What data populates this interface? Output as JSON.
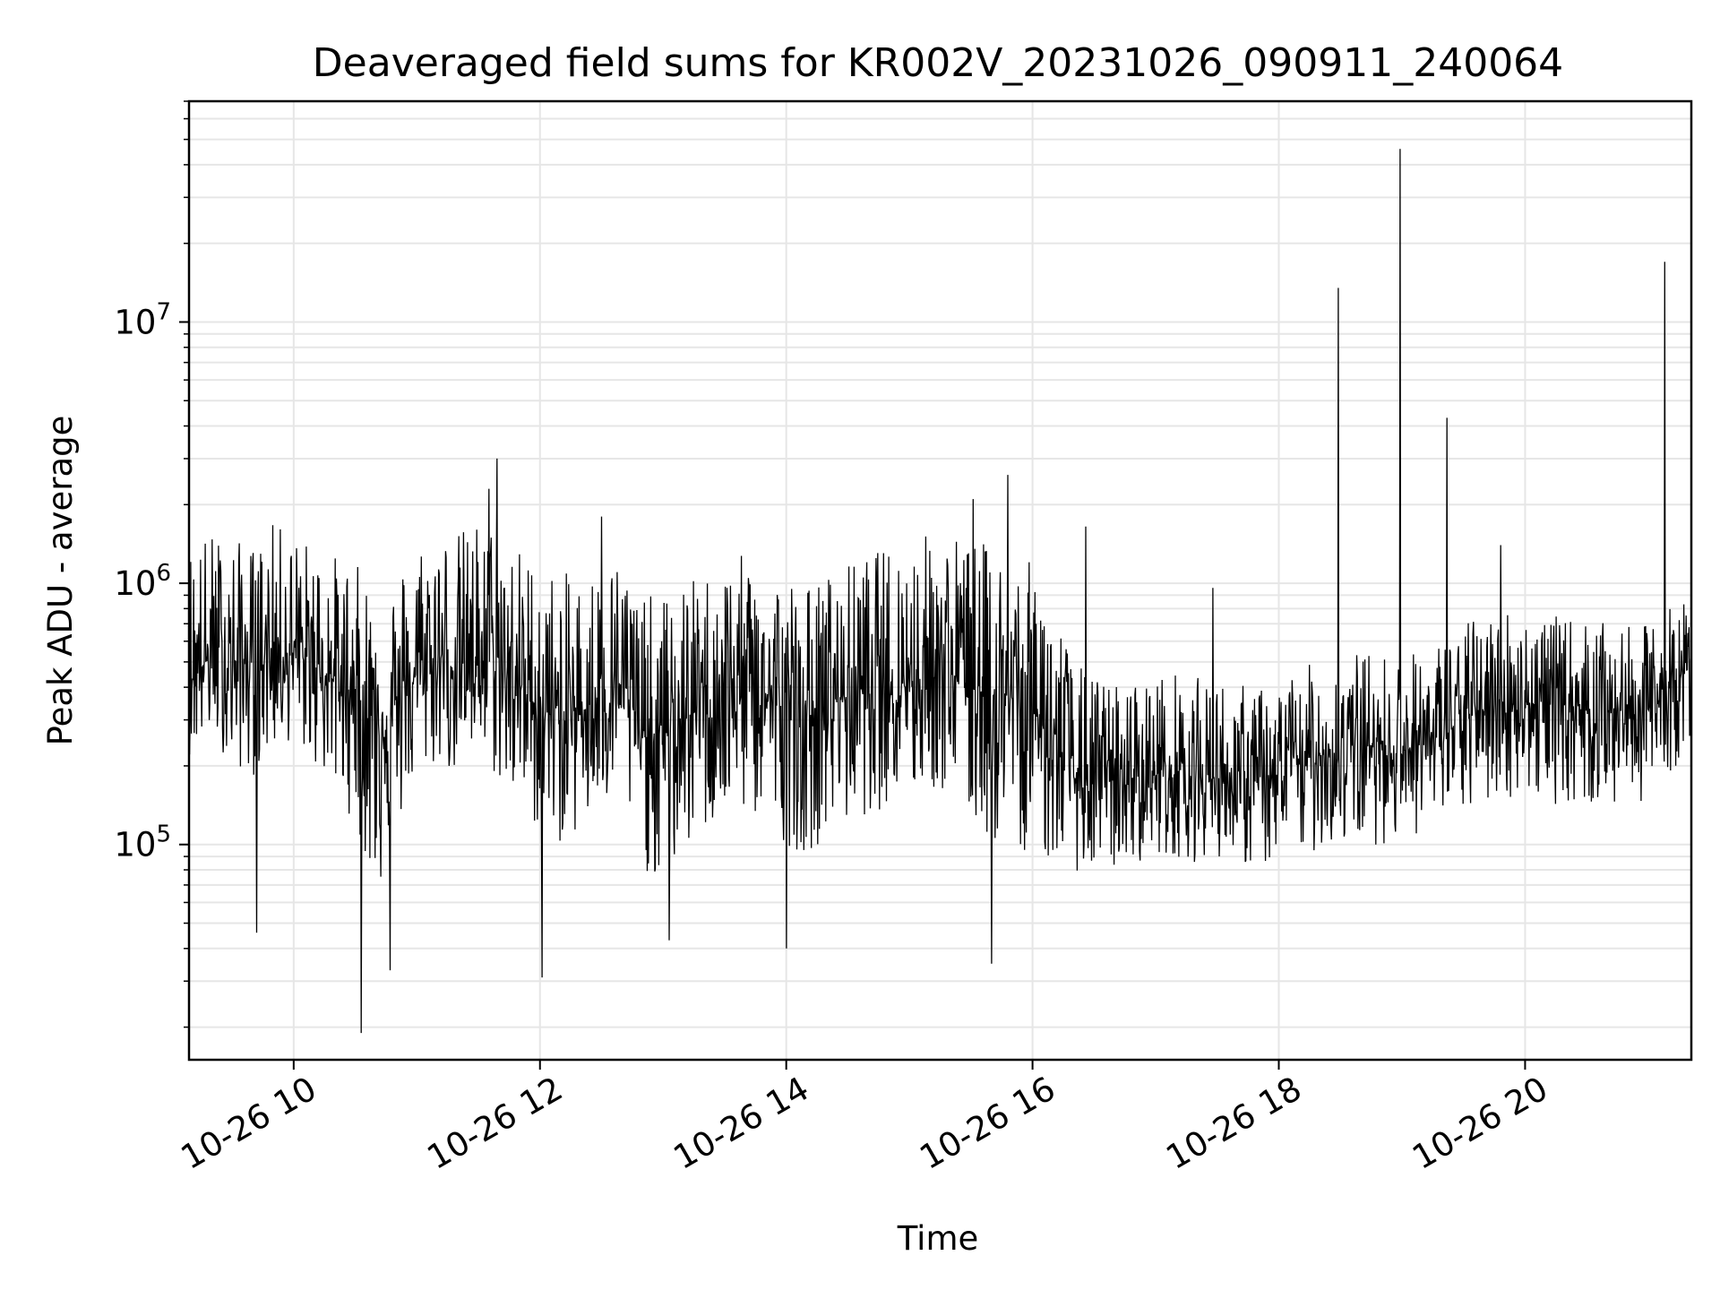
{
  "chart_data": {
    "type": "line",
    "title": "Deaveraged field sums for KR002V_20231026_090911_240064",
    "xlabel": "Time",
    "ylabel": "Peak ADU - average",
    "y_scale": "log",
    "ylim": [
      15000,
      70000000
    ],
    "xlim": [
      "2023-10-26 09:09",
      "2023-10-26 21:21"
    ],
    "x_ticks": [
      {
        "value": "2023-10-26 10:00",
        "label": "10-26 10"
      },
      {
        "value": "2023-10-26 12:00",
        "label": "10-26 12"
      },
      {
        "value": "2023-10-26 14:00",
        "label": "10-26 14"
      },
      {
        "value": "2023-10-26 16:00",
        "label": "10-26 16"
      },
      {
        "value": "2023-10-26 18:00",
        "label": "10-26 18"
      },
      {
        "value": "2023-10-26 20:00",
        "label": "10-26 20"
      }
    ],
    "y_ticks": [
      {
        "value": 100000,
        "base": "10",
        "exp": "5"
      },
      {
        "value": 1000000,
        "base": "10",
        "exp": "6"
      },
      {
        "value": 10000000,
        "base": "10",
        "exp": "7"
      }
    ],
    "grid": true,
    "line_color": "#000000",
    "series": [
      {
        "x": [
          "2023-10-26 09:10",
          "2023-10-26 09:20",
          "2023-10-26 09:30",
          "2023-10-26 09:40",
          "2023-10-26 09:50",
          "2023-10-26 10:00",
          "2023-10-26 10:10",
          "2023-10-26 10:20",
          "2023-10-26 10:30",
          "2023-10-26 10:40",
          "2023-10-26 10:50",
          "2023-10-26 11:00",
          "2023-10-26 11:10",
          "2023-10-26 11:20",
          "2023-10-26 11:30",
          "2023-10-26 11:40",
          "2023-10-26 11:50",
          "2023-10-26 12:00",
          "2023-10-26 12:10",
          "2023-10-26 12:20",
          "2023-10-26 12:30",
          "2023-10-26 12:40",
          "2023-10-26 12:50",
          "2023-10-26 13:00",
          "2023-10-26 13:10",
          "2023-10-26 13:20",
          "2023-10-26 13:30",
          "2023-10-26 13:40",
          "2023-10-26 13:50",
          "2023-10-26 14:00",
          "2023-10-26 14:10",
          "2023-10-26 14:20",
          "2023-10-26 14:30",
          "2023-10-26 14:40",
          "2023-10-26 14:50",
          "2023-10-26 15:00",
          "2023-10-26 15:10",
          "2023-10-26 15:20",
          "2023-10-26 15:30",
          "2023-10-26 15:40",
          "2023-10-26 15:50",
          "2023-10-26 16:00",
          "2023-10-26 16:10",
          "2023-10-26 16:20",
          "2023-10-26 16:30",
          "2023-10-26 16:40",
          "2023-10-26 16:50",
          "2023-10-26 17:00",
          "2023-10-26 17:10",
          "2023-10-26 17:20",
          "2023-10-26 17:30",
          "2023-10-26 17:40",
          "2023-10-26 17:50",
          "2023-10-26 18:00",
          "2023-10-26 18:10",
          "2023-10-26 18:20",
          "2023-10-26 18:30",
          "2023-10-26 18:40",
          "2023-10-26 18:50",
          "2023-10-26 19:00",
          "2023-10-26 19:10",
          "2023-10-26 19:20",
          "2023-10-26 19:30",
          "2023-10-26 19:40",
          "2023-10-26 19:50",
          "2023-10-26 20:00",
          "2023-10-26 20:10",
          "2023-10-26 20:20",
          "2023-10-26 20:30",
          "2023-10-26 20:40",
          "2023-10-26 20:50",
          "2023-10-26 21:00",
          "2023-10-26 21:10",
          "2023-10-26 21:20"
        ],
        "typical": [
          450000,
          520000,
          480000,
          500000,
          550000,
          530000,
          500000,
          420000,
          380000,
          300000,
          320000,
          450000,
          500000,
          480000,
          520000,
          460000,
          400000,
          330000,
          300000,
          320000,
          380000,
          420000,
          260000,
          250000,
          300000,
          340000,
          380000,
          400000,
          370000,
          330000,
          300000,
          350000,
          380000,
          400000,
          420000,
          430000,
          450000,
          460000,
          420000,
          380000,
          360000,
          330000,
          250000,
          180000,
          170000,
          175000,
          180000,
          185000,
          190000,
          180000,
          180000,
          175000,
          170000,
          180000,
          210000,
          220000,
          230000,
          240000,
          235000,
          230000,
          240000,
          260000,
          300000,
          330000,
          350000,
          350000,
          345000,
          340000,
          335000,
          330000,
          320000,
          330000,
          380000,
          480000
        ],
        "low": [
          220000,
          260000,
          200000,
          180000,
          230000,
          250000,
          200000,
          160000,
          120000,
          60000,
          110000,
          180000,
          200000,
          180000,
          220000,
          170000,
          140000,
          110000,
          100000,
          110000,
          130000,
          150000,
          80000,
          70000,
          90000,
          110000,
          120000,
          130000,
          120000,
          100000,
          90000,
          110000,
          120000,
          130000,
          140000,
          150000,
          160000,
          150000,
          120000,
          100000,
          100000,
          90000,
          85000,
          80000,
          75000,
          80000,
          85000,
          90000,
          90000,
          85000,
          90000,
          85000,
          80000,
          85000,
          90000,
          95000,
          100000,
          100000,
          100000,
          105000,
          110000,
          120000,
          130000,
          140000,
          150000,
          150000,
          145000,
          140000,
          140000,
          135000,
          140000,
          150000,
          180000,
          240000
        ],
        "high": [
          1500000,
          1600000,
          1500000,
          1400000,
          1700000,
          1600000,
          1400000,
          1300000,
          1200000,
          1000000,
          1100000,
          1500000,
          1700000,
          1600000,
          1800000,
          1700000,
          1400000,
          1200000,
          1100000,
          1100000,
          1200000,
          1300000,
          900000,
          900000,
          1000000,
          1100000,
          1200000,
          1300000,
          1200000,
          1100000,
          1000000,
          1100000,
          1200000,
          1300000,
          1400000,
          1500000,
          1600000,
          1600000,
          1500000,
          1400000,
          1300000,
          1200000,
          900000,
          500000,
          450000,
          420000,
          430000,
          450000,
          460000,
          440000,
          430000,
          420000,
          400000,
          420000,
          480000,
          500000,
          520000,
          560000,
          540000,
          540000,
          560000,
          620000,
          700000,
          780000,
          820000,
          780000,
          760000,
          740000,
          720000,
          700000,
          680000,
          700000,
          820000,
          900000
        ]
      }
    ],
    "extremes": [
      {
        "x": "2023-10-26 09:42",
        "y": 46000
      },
      {
        "x": "2023-10-26 10:33",
        "y": 19000
      },
      {
        "x": "2023-10-26 10:47",
        "y": 33000
      },
      {
        "x": "2023-10-26 11:35",
        "y": 2300000
      },
      {
        "x": "2023-10-26 11:39",
        "y": 3000000
      },
      {
        "x": "2023-10-26 12:01",
        "y": 31000
      },
      {
        "x": "2023-10-26 12:30",
        "y": 1800000
      },
      {
        "x": "2023-10-26 13:03",
        "y": 43000
      },
      {
        "x": "2023-10-26 14:00",
        "y": 40000
      },
      {
        "x": "2023-10-26 15:31",
        "y": 2100000
      },
      {
        "x": "2023-10-26 15:40",
        "y": 35000
      },
      {
        "x": "2023-10-26 15:48",
        "y": 2600000
      },
      {
        "x": "2023-10-26 16:26",
        "y": 1650000
      },
      {
        "x": "2023-10-26 17:28",
        "y": 960000
      },
      {
        "x": "2023-10-26 18:29",
        "y": 13500000
      },
      {
        "x": "2023-10-26 18:59",
        "y": 46000000
      },
      {
        "x": "2023-10-26 19:22",
        "y": 4300000
      },
      {
        "x": "2023-10-26 19:48",
        "y": 1400000
      },
      {
        "x": "2023-10-26 21:08",
        "y": 17000000
      }
    ]
  }
}
